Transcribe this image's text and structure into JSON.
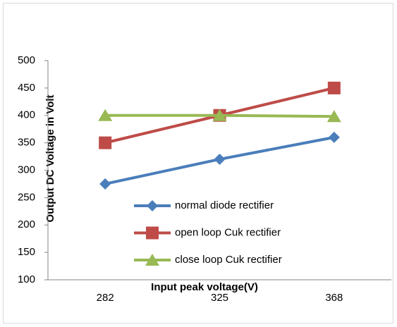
{
  "chart_data": {
    "type": "line",
    "xlabel": "Input peak voltage(V)",
    "ylabel": "Output DC Voltage in Volt",
    "categories": [
      "282",
      "325",
      "368"
    ],
    "series": [
      {
        "name": "normal diode rectifier",
        "color": "#4a7ebb",
        "marker": "diamond",
        "values": [
          275,
          320,
          360
        ]
      },
      {
        "name": "open loop Cuk rectifier",
        "color": "#be4b48",
        "marker": "square",
        "values": [
          350,
          400,
          450
        ]
      },
      {
        "name": "close loop Cuk rectifier",
        "color": "#98b954",
        "marker": "triangle",
        "values": [
          400,
          400,
          398
        ]
      }
    ],
    "ylim": [
      100,
      500
    ],
    "yticks": [
      100,
      150,
      200,
      250,
      300,
      350,
      400,
      450,
      500
    ],
    "grid": false
  }
}
